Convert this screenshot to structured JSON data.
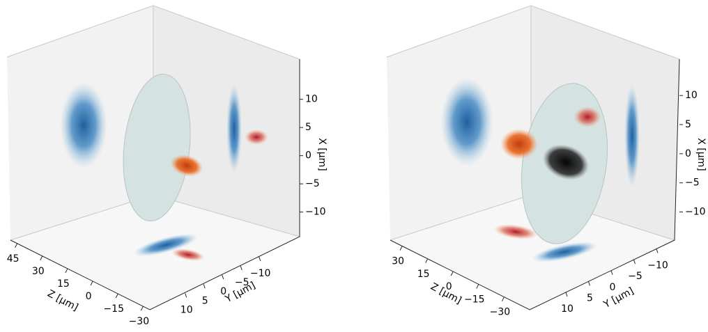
{
  "chart_data": [
    {
      "type": "3d",
      "xlabel": "X [μm]",
      "ylabel": "Y [μm]",
      "zlabel": "Z [μm]",
      "xlim": [
        -14,
        17
      ],
      "ylim": [
        -21,
        19
      ],
      "zlim": [
        -34,
        49
      ],
      "xticks": [
        {
          "value": 10,
          "label": "10"
        },
        {
          "value": 5,
          "label": "5"
        },
        {
          "value": 0,
          "label": "0"
        },
        {
          "value": -5,
          "label": "−5"
        },
        {
          "value": -10,
          "label": "−10"
        }
      ],
      "yticks": [
        {
          "value": 10,
          "label": "10"
        },
        {
          "value": 5,
          "label": "5"
        },
        {
          "value": 0,
          "label": "0"
        },
        {
          "value": -5,
          "label": "−5"
        },
        {
          "value": -10,
          "label": "−10"
        }
      ],
      "zticks": [
        {
          "value": 45,
          "label": "45"
        },
        {
          "value": 30,
          "label": "30"
        },
        {
          "value": 15,
          "label": "15"
        },
        {
          "value": 0,
          "label": "0"
        },
        {
          "value": -15,
          "label": "−15"
        },
        {
          "value": -30,
          "label": "−30"
        }
      ]
    },
    {
      "type": "3d",
      "xlabel": "X [μm]",
      "ylabel": "Y [μm]",
      "zlabel": "Z [μm]",
      "xlim": [
        -14,
        16
      ],
      "ylim": [
        -14,
        18
      ],
      "zlim": [
        -45,
        37
      ],
      "xticks": [
        {
          "value": 10,
          "label": "10"
        },
        {
          "value": 5,
          "label": "5"
        },
        {
          "value": 0,
          "label": "0"
        },
        {
          "value": -5,
          "label": "−5"
        },
        {
          "value": -10,
          "label": "−10"
        }
      ],
      "yticks": [
        {
          "value": 10,
          "label": "10"
        },
        {
          "value": 5,
          "label": "5"
        },
        {
          "value": 0,
          "label": "0"
        },
        {
          "value": -5,
          "label": "−5"
        },
        {
          "value": -10,
          "label": "−10"
        }
      ],
      "zticks": [
        {
          "value": 30,
          "label": "30"
        },
        {
          "value": 15,
          "label": "15"
        },
        {
          "value": 0,
          "label": "0"
        },
        {
          "value": -15,
          "label": "−15"
        },
        {
          "value": -30,
          "label": "−30"
        }
      ]
    }
  ]
}
